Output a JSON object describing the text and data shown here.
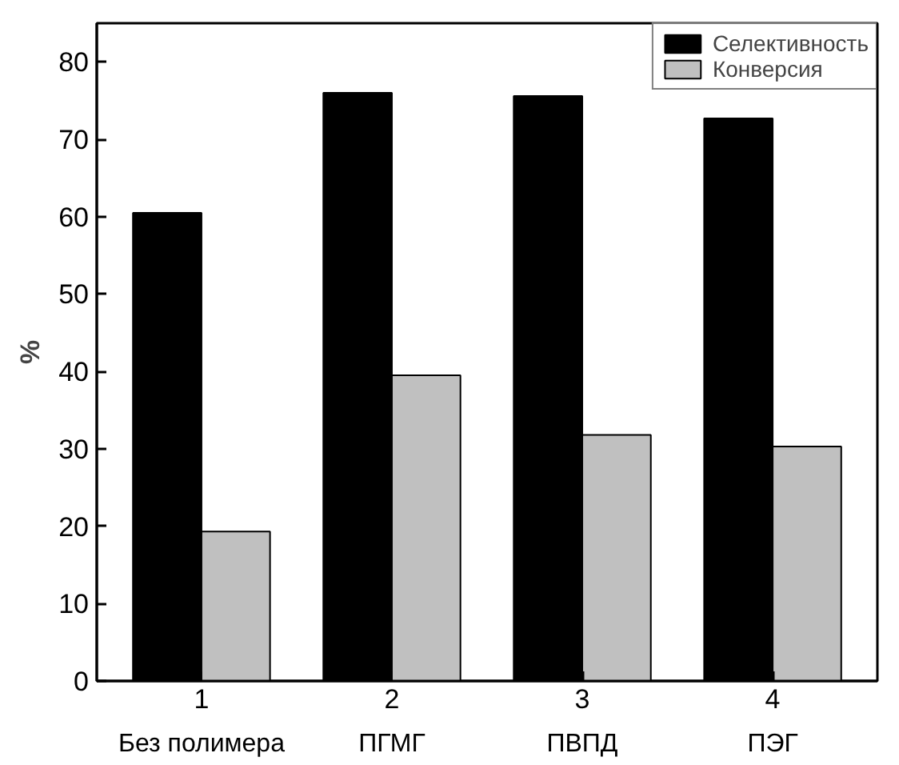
{
  "chart_data": {
    "type": "bar",
    "ylabel": "%",
    "categories": [
      "1",
      "2",
      "3",
      "4"
    ],
    "series": [
      {
        "name": "Селективность",
        "color": "#000000",
        "values": [
          60.5,
          76,
          75.6,
          72.7
        ]
      },
      {
        "name": "Конверсия",
        "color": "#c0c0c0",
        "values": [
          19.3,
          39.5,
          31.8,
          30.3
        ]
      }
    ],
    "annotations": [
      "Без полимера",
      "ПГМГ",
      "ПВПД",
      "ПЭГ"
    ],
    "ylim": [
      0,
      85
    ],
    "yticks": [
      0,
      10,
      20,
      30,
      40,
      50,
      60,
      70,
      80
    ],
    "legend": "top right"
  }
}
